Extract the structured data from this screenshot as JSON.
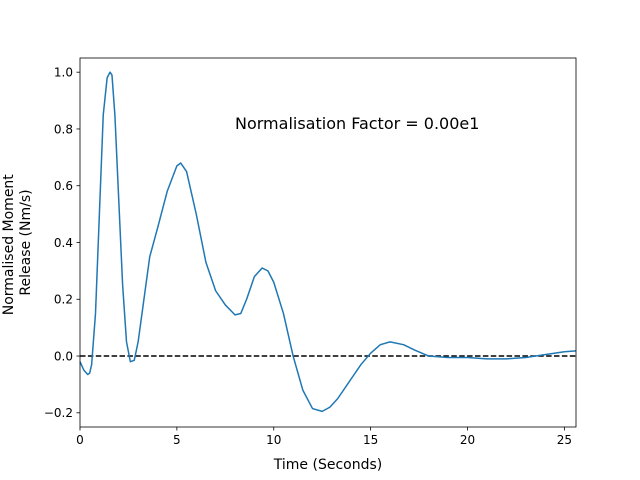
{
  "chart_data": {
    "type": "line",
    "title": "",
    "xlabel": "Time (Seconds)",
    "ylabel_lines": [
      "Normalised Moment",
      "Release (Nm/s)"
    ],
    "xlim": [
      0,
      25.6
    ],
    "ylim": [
      -0.25,
      1.05
    ],
    "x_ticks": [
      0,
      5,
      10,
      15,
      20,
      25
    ],
    "x_tick_labels": [
      "0",
      "5",
      "10",
      "15",
      "20",
      "25"
    ],
    "y_ticks": [
      -0.2,
      0.0,
      0.2,
      0.4,
      0.6,
      0.8,
      1.0
    ],
    "y_tick_labels": [
      "−0.2",
      "0.0",
      "0.2",
      "0.4",
      "0.6",
      "0.8",
      "1.0"
    ],
    "grid": false,
    "annotation": {
      "text": "Normalisation Factor = 0.00e1",
      "x": 8.0,
      "y": 0.8
    },
    "reference_line": {
      "y": 0.0,
      "style": "dashed",
      "color": "#000000"
    },
    "series": [
      {
        "color": "#1f77b4",
        "x": [
          0,
          0.2,
          0.4,
          0.5,
          0.6,
          0.8,
          1.0,
          1.2,
          1.4,
          1.55,
          1.65,
          1.8,
          2.0,
          2.2,
          2.4,
          2.6,
          2.8,
          3.0,
          3.3,
          3.6,
          4.0,
          4.5,
          5.0,
          5.2,
          5.5,
          6.0,
          6.5,
          7.0,
          7.5,
          8.0,
          8.3,
          8.6,
          9.0,
          9.4,
          9.7,
          10.0,
          10.5,
          11.0,
          11.5,
          12.0,
          12.5,
          12.9,
          13.3,
          14.0,
          14.5,
          15.0,
          15.5,
          16.0,
          16.7,
          17.3,
          18.0,
          19.0,
          20.0,
          21.0,
          22.0,
          23.0,
          24.0,
          25.0,
          25.6
        ],
        "y": [
          -0.02,
          -0.05,
          -0.065,
          -0.06,
          -0.03,
          0.15,
          0.5,
          0.85,
          0.98,
          1.0,
          0.99,
          0.85,
          0.55,
          0.25,
          0.05,
          -0.02,
          -0.015,
          0.05,
          0.2,
          0.35,
          0.45,
          0.58,
          0.67,
          0.68,
          0.65,
          0.5,
          0.33,
          0.23,
          0.18,
          0.145,
          0.15,
          0.2,
          0.28,
          0.31,
          0.3,
          0.26,
          0.15,
          0.0,
          -0.12,
          -0.185,
          -0.195,
          -0.18,
          -0.15,
          -0.08,
          -0.03,
          0.01,
          0.04,
          0.05,
          0.04,
          0.02,
          0.0,
          -0.005,
          -0.005,
          -0.01,
          -0.01,
          -0.005,
          0.005,
          0.015,
          0.018
        ]
      }
    ]
  }
}
